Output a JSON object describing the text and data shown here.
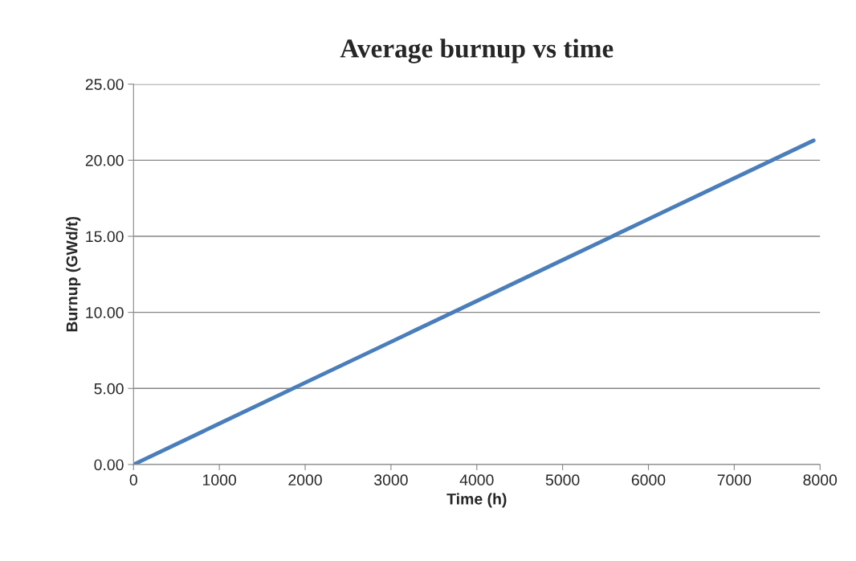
{
  "chart_data": {
    "type": "line",
    "title": "Average burnup vs time",
    "xlabel": "Time (h)",
    "ylabel": "Burnup (GWd/t)",
    "series": [
      {
        "color": "#4a7ebb",
        "x": [
          0,
          1000,
          2000,
          3000,
          4000,
          5000,
          6000,
          7000,
          7925
        ],
        "values": [
          0,
          2.69,
          5.38,
          8.06,
          10.75,
          13.44,
          16.13,
          18.82,
          21.3
        ]
      }
    ],
    "xlim": [
      0,
      8000
    ],
    "xticks": [
      0,
      1000,
      2000,
      3000,
      4000,
      5000,
      6000,
      7000,
      8000
    ],
    "ylim": [
      0,
      25
    ],
    "yticks": [
      {
        "value": 0,
        "label": "0.00"
      },
      {
        "value": 5,
        "label": "5.00"
      },
      {
        "value": 10,
        "label": "10.00"
      },
      {
        "value": 15,
        "label": "15.00"
      },
      {
        "value": 20,
        "label": "20.00"
      },
      {
        "value": 25,
        "label": "25.00"
      }
    ],
    "grid": "y",
    "legend": false,
    "marker": "none",
    "line_style": "solid"
  }
}
